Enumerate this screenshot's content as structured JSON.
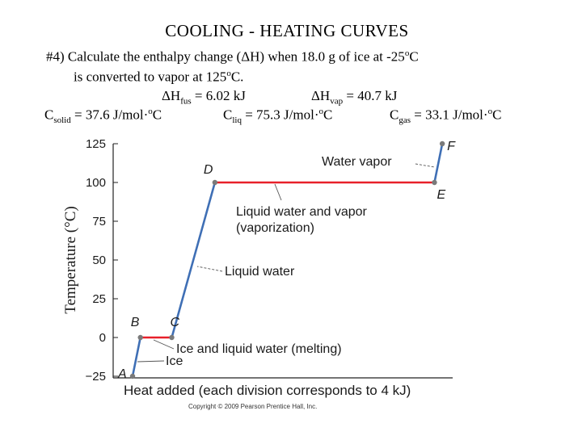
{
  "header": {
    "title": "COOLING - HEATING  CURVES",
    "line1": "#4) Calculate the enthalpy change (ΔH) when 18.0 g of ice at -25",
    "line1_unit": "o",
    "line1_end": "C",
    "line2": "is converted to vapor at 125",
    "line2_unit": "o",
    "line2_end": "C.",
    "dh_fus_prefix": "ΔH",
    "dh_fus_sub": "fus",
    "dh_fus_value": " = 6.02 kJ",
    "dh_vap_prefix": "ΔH",
    "dh_vap_sub": "vap",
    "dh_vap_value": " = 40.7 kJ",
    "c_solid_prefix": "C",
    "c_solid_sub": "solid",
    "c_solid_value": " = 37.6 J/mol·",
    "c_solid_unit": "o",
    "c_solid_end": "C",
    "c_liq_prefix": "C",
    "c_liq_sub": "liq",
    "c_liq_value": " = 75.3 J/mol·",
    "c_liq_unit": "o",
    "c_liq_end": "C",
    "c_gas_prefix": "C",
    "c_gas_sub": "gas",
    "c_gas_value": " = 33.1 J/mol·",
    "c_gas_unit": "o",
    "c_gas_end": "C"
  },
  "chart_data": {
    "type": "line",
    "title": "",
    "xlabel": "Heat added (each division corresponds to 4 kJ)",
    "ylabel": "Temperature (°C)",
    "ylim": [
      -25,
      125
    ],
    "yticks": [
      -25,
      0,
      25,
      50,
      75,
      100,
      125
    ],
    "ytick_labels": [
      "−25",
      "0",
      "25",
      "50",
      "75",
      "100",
      "125"
    ],
    "xlim": [
      0,
      80
    ],
    "points": [
      {
        "label": "A",
        "x": 0,
        "y": -25
      },
      {
        "label": "B",
        "x": 2,
        "y": 0
      },
      {
        "label": "C",
        "x": 10,
        "y": 0
      },
      {
        "label": "D",
        "x": 21,
        "y": 100
      },
      {
        "label": "E",
        "x": 77,
        "y": 100
      },
      {
        "label": "F",
        "x": 79,
        "y": 125
      }
    ],
    "segments": [
      {
        "name": "Ice",
        "from": "A",
        "to": "B",
        "color": "#3f6fb5"
      },
      {
        "name": "Ice and liquid water (melting)",
        "from": "B",
        "to": "C",
        "color": "#e8202a"
      },
      {
        "name": "Liquid water",
        "from": "C",
        "to": "D",
        "color": "#3f6fb5"
      },
      {
        "name": "Liquid water and vapor (vaporization)",
        "from": "D",
        "to": "E",
        "color": "#e8202a"
      },
      {
        "name": "Water vapor",
        "from": "E",
        "to": "F",
        "color": "#3f6fb5"
      }
    ],
    "annotations": {
      "water_vapor": "Water vapor",
      "liquid_vapor_1": "Liquid water and vapor",
      "liquid_vapor_2": "(vaporization)",
      "liquid_water": "Liquid water",
      "melting": "Ice and liquid water (melting)",
      "ice": "Ice"
    },
    "copyright": "Copyright © 2009 Pearson Prentice Hall, Inc."
  }
}
